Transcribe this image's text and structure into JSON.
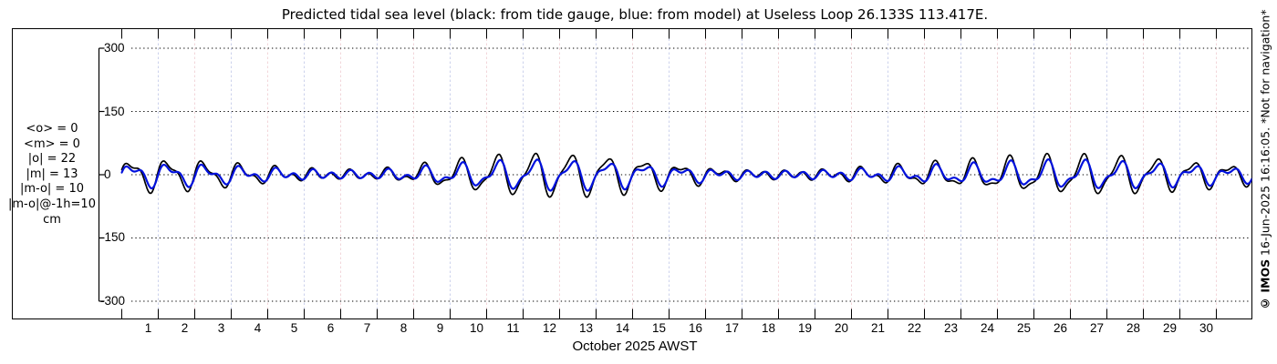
{
  "title": "Predicted tidal sea level (black: from tide gauge, blue: from model) at Useless Loop 26.133S 113.417E.",
  "watermark": {
    "prefix": "© IMOS",
    "rest": " 16-Jun-2025 16:16:05. *Not for navigation*"
  },
  "stats": {
    "lines": [
      "<o> = 0",
      "<m> = 0",
      "|o| = 22",
      "|m| = 13",
      "|m-o| = 10",
      "|m-o|@-1h=10",
      "cm"
    ]
  },
  "y_axis": {
    "unit": "cm",
    "tick_labels": [
      "300",
      "150",
      "0",
      "-150",
      "-300"
    ],
    "tick_values": [
      300,
      150,
      0,
      -150,
      -300
    ]
  },
  "x_axis": {
    "label": "October 2025 AWST",
    "day_labels": [
      "1",
      "2",
      "3",
      "4",
      "5",
      "6",
      "7",
      "8",
      "9",
      "10",
      "11",
      "12",
      "13",
      "14",
      "15",
      "16",
      "17",
      "18",
      "19",
      "20",
      "21",
      "22",
      "23",
      "24",
      "25",
      "26",
      "27",
      "28",
      "29",
      "30"
    ],
    "num_days": 31
  },
  "chart_data": {
    "type": "line",
    "title": "Predicted tidal sea level (black: from tide gauge, blue: from model) at Useless Loop 26.133S 113.417E.",
    "xlabel": "October 2025 AWST",
    "ylabel": "cm",
    "ylim": [
      -330,
      330
    ],
    "yticks": [
      300,
      150,
      0,
      -150,
      -300
    ],
    "x_range_days": [
      0,
      31
    ],
    "grid": {
      "horizontal_style": "dotted-black",
      "vertical_style": "dashed-pale-alternating",
      "vertical_color_a": "#ccd2ec",
      "vertical_color_b": "#f2d6da"
    },
    "tide_harmonics": {
      "diurnal_period_days": 1.003,
      "semidiurnal_period_days": 0.5175,
      "diurnal_phase_rad": 0.0,
      "semidiurnal_phase_rad": 1.2
    },
    "series": [
      {
        "name": "tide gauge (observed prediction)",
        "color": "#000000",
        "stroke_width": 1.7,
        "time_shift_days": 0,
        "diurnal_scale": 1.0,
        "semidiurnal_scale": 1.0,
        "diurnal_amp_cm_by_day": [
          30,
          33,
          30,
          23,
          15,
          8,
          4,
          6,
          16,
          28,
          38,
          45,
          46,
          43,
          36,
          26,
          15,
          6,
          3,
          5,
          10,
          16,
          22,
          27,
          33,
          38,
          41,
          41,
          37,
          31,
          24,
          18
        ],
        "semidiurnal_amp_cm_by_day": [
          13,
          13,
          12,
          11,
          10,
          10,
          9,
          9,
          10,
          11,
          12,
          13,
          13,
          12,
          12,
          11,
          10,
          9,
          9,
          9,
          10,
          10,
          11,
          11,
          12,
          13,
          13,
          13,
          12,
          12,
          11,
          10
        ]
      },
      {
        "name": "model prediction",
        "color": "#0011dd",
        "stroke_width": 2.2,
        "time_shift_days": -0.03,
        "diurnal_scale": 0.66,
        "semidiurnal_scale": 0.92
      }
    ]
  }
}
